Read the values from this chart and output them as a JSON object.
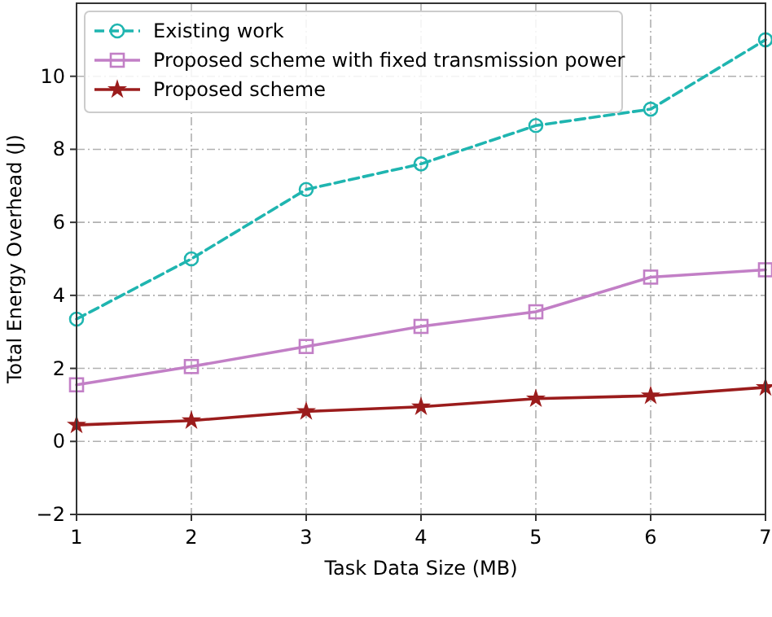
{
  "chart_data": {
    "type": "line",
    "xlabel": "Task Data Size (MB)",
    "ylabel": "Total Energy Overhead (J)",
    "x": [
      1,
      2,
      3,
      4,
      5,
      6,
      7
    ],
    "xlim": [
      1,
      7
    ],
    "xticks": [
      1,
      2,
      3,
      4,
      5,
      6,
      7
    ],
    "ylim": [
      -2,
      12
    ],
    "yticks": [
      -2,
      0,
      2,
      4,
      6,
      8,
      10
    ],
    "grid": true,
    "legend": "top left",
    "series": [
      {
        "name": "Existing work",
        "color": "#1fb5b0",
        "marker": "circle",
        "line_style": "dashed",
        "values": [
          3.35,
          5.0,
          6.9,
          7.6,
          8.65,
          9.1,
          11.0
        ]
      },
      {
        "name": "Proposed scheme with fixed transmission power",
        "color": "#c27fc6",
        "marker": "square",
        "line_style": "solid",
        "values": [
          1.55,
          2.05,
          2.6,
          3.15,
          3.55,
          4.5,
          4.7
        ]
      },
      {
        "name": "Proposed scheme",
        "color": "#9b1c1c",
        "marker": "star",
        "line_style": "solid",
        "values": [
          0.45,
          0.57,
          0.82,
          0.95,
          1.17,
          1.25,
          1.48
        ]
      }
    ]
  }
}
